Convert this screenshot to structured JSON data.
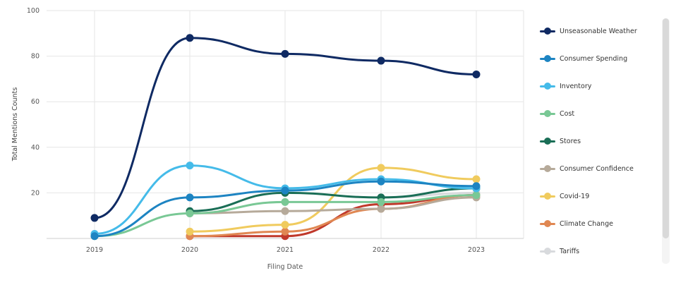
{
  "chart_data": {
    "type": "line",
    "xlabel": "Filing Date",
    "ylabel": "Total Mentions Counts",
    "categories": [
      "2019",
      "2020",
      "2021",
      "2022",
      "2023"
    ],
    "ylim": [
      0,
      100
    ],
    "yticks": [
      "20",
      "40",
      "60",
      "80",
      "100"
    ],
    "grid": true,
    "legend_position": "right",
    "series": [
      {
        "name": "Unseasonable Weather",
        "color": "#0f2a63",
        "values": [
          9,
          88,
          81,
          78,
          72
        ]
      },
      {
        "name": "Consumer Spending",
        "color": "#1d84c2",
        "values": [
          1,
          18,
          21,
          25,
          23
        ]
      },
      {
        "name": "Inventory",
        "color": "#45bbe9",
        "values": [
          2,
          32,
          22,
          26,
          22
        ]
      },
      {
        "name": "Cost",
        "color": "#79c895",
        "values": [
          1,
          11,
          16,
          16,
          19
        ]
      },
      {
        "name": "Stores",
        "color": "#1a6e56",
        "values": [
          null,
          12,
          20,
          18,
          22
        ]
      },
      {
        "name": "Consumer Confidence",
        "color": "#b6aa9a",
        "values": [
          null,
          11,
          12,
          13,
          18
        ]
      },
      {
        "name": "Covid-19",
        "color": "#f0cb5e",
        "values": [
          null,
          3,
          6,
          31,
          26
        ]
      },
      {
        "name": "Climate Change",
        "color": "#e08752",
        "values": [
          null,
          1,
          3,
          13,
          19
        ]
      },
      {
        "name": "Tariffs",
        "color": "#d8dadd",
        "values": [
          null,
          null,
          null,
          18,
          20
        ]
      },
      {
        "name": "",
        "color": "#c0392b",
        "values": [
          null,
          1,
          1,
          15,
          19
        ]
      }
    ]
  }
}
